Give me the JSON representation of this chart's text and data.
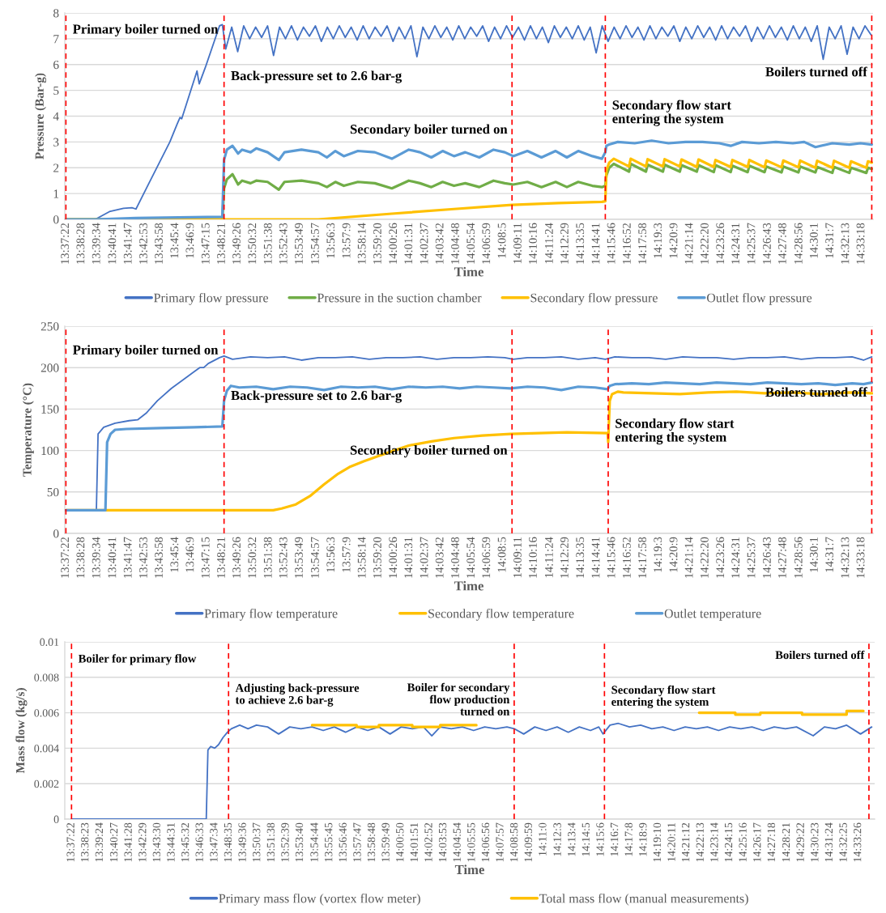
{
  "chart_data": [
    {
      "type": "line",
      "xlabel": "Time",
      "ylabel": "Pressure (Bar-g)",
      "xlim": [
        13.6215,
        14.5685
      ],
      "ylim": [
        0,
        8
      ],
      "grid": "y",
      "legend": "bottom",
      "xticks": [
        {
          "value": 13.6228,
          "label": "13:37:22"
        },
        {
          "value": 13.6411,
          "label": "13:38:28"
        },
        {
          "value": 13.6594,
          "label": "13:39:34"
        },
        {
          "value": 13.6781,
          "label": "13:40:41"
        },
        {
          "value": 13.6964,
          "label": "13:41:47"
        },
        {
          "value": 13.7147,
          "label": "13:42:53"
        },
        {
          "value": 13.7328,
          "label": "13:43:58"
        },
        {
          "value": 13.7511,
          "label": "13:45:4"
        },
        {
          "value": 13.7692,
          "label": "13:46:9"
        },
        {
          "value": 13.7875,
          "label": "13:47:15"
        },
        {
          "value": 13.8058,
          "label": "13:48:21"
        },
        {
          "value": 13.8239,
          "label": "13:49:26"
        },
        {
          "value": 13.8422,
          "label": "13:50:32"
        },
        {
          "value": 13.8606,
          "label": "13:51:38"
        },
        {
          "value": 13.8786,
          "label": "13:52:43"
        },
        {
          "value": 13.8969,
          "label": "13:53:49"
        },
        {
          "value": 13.9158,
          "label": "13:54:57"
        },
        {
          "value": 13.9342,
          "label": "13:56:3"
        },
        {
          "value": 13.9525,
          "label": "13:57:9"
        },
        {
          "value": 13.9706,
          "label": "13:58:14"
        },
        {
          "value": 13.9889,
          "label": "13:59:20"
        },
        {
          "value": 14.0072,
          "label": "14:00:26"
        },
        {
          "value": 14.0253,
          "label": "14:01:31"
        },
        {
          "value": 14.0436,
          "label": "14:02:37"
        },
        {
          "value": 14.0617,
          "label": "14:03:42"
        },
        {
          "value": 14.08,
          "label": "14:04:48"
        },
        {
          "value": 14.0983,
          "label": "14:05:54"
        },
        {
          "value": 14.1164,
          "label": "14:06:59"
        },
        {
          "value": 14.1347,
          "label": "14:08:5"
        },
        {
          "value": 14.1531,
          "label": "14:09:11"
        },
        {
          "value": 14.1711,
          "label": "14:10:16"
        },
        {
          "value": 14.19,
          "label": "14:11:24"
        },
        {
          "value": 14.2081,
          "label": "14:12:29"
        },
        {
          "value": 14.2264,
          "label": "14:13:35"
        },
        {
          "value": 14.2447,
          "label": "14:14:41"
        },
        {
          "value": 14.2628,
          "label": "14:15:46"
        },
        {
          "value": 14.2811,
          "label": "14:16:52"
        },
        {
          "value": 14.2994,
          "label": "14:17:58"
        },
        {
          "value": 14.3175,
          "label": "14:19:3"
        },
        {
          "value": 14.3358,
          "label": "14:20:9"
        },
        {
          "value": 14.3539,
          "label": "14:21:14"
        },
        {
          "value": 14.3722,
          "label": "14:22:20"
        },
        {
          "value": 14.3906,
          "label": "14:23:26"
        },
        {
          "value": 14.4086,
          "label": "14:24:31"
        },
        {
          "value": 14.4269,
          "label": "14:25:37"
        },
        {
          "value": 14.4453,
          "label": "14:26:43"
        },
        {
          "value": 14.4633,
          "label": "14:27:48"
        },
        {
          "value": 14.4822,
          "label": "14:28:56"
        },
        {
          "value": 14.5003,
          "label": "14:30:1"
        },
        {
          "value": 14.5186,
          "label": "14:31:7"
        },
        {
          "value": 14.5369,
          "label": "14:32:13"
        },
        {
          "value": 14.555,
          "label": "14:33:18"
        }
      ],
      "yticks": [
        0,
        1,
        2,
        3,
        4,
        5,
        6,
        7,
        8
      ],
      "ref_lines": [
        {
          "axis": "x",
          "value": 13.6228,
          "label": "Primary boiler turned on",
          "color": "#ff0000",
          "line_style": "dashed"
        },
        {
          "axis": "x",
          "value": 13.8081,
          "label": "Back-pressure set to 2.6 bar-g",
          "color": "#ff0000",
          "line_style": "dashed"
        },
        {
          "axis": "x",
          "value": 14.1455,
          "label": "Secondary boiler turned on",
          "color": "#ff0000",
          "line_style": "dashed"
        },
        {
          "axis": "x",
          "value": 14.2548,
          "label": "Secondary flow start\nentering the system",
          "color": "#ff0000",
          "line_style": "dashed"
        },
        {
          "axis": "x",
          "value": 14.567,
          "label": "Boilers turned off",
          "color": "#ff0000",
          "line_style": "dashed"
        }
      ],
      "series": [
        {
          "name": "Primary flow pressure",
          "color": "#4472c4",
          "x": [
            13.6228,
            13.6572,
            13.6738,
            13.6903,
            13.7002,
            13.7049,
            13.7201,
            13.7446,
            13.7532,
            13.7565,
            13.7585,
            13.7764,
            13.779,
            13.7863,
            13.8028,
            13.8061,
            13.8101,
            13.8171,
            13.8241,
            13.8311,
            13.8381,
            13.8451,
            13.8521,
            13.8591,
            13.8661,
            13.8731,
            13.8801,
            13.8871,
            13.8941,
            13.9011,
            13.9081,
            13.9151,
            13.9221,
            13.9291,
            13.9361,
            13.9431,
            13.9501,
            13.9571,
            13.9641,
            13.9711,
            13.9781,
            13.9851,
            13.9921,
            13.9991,
            14.0061,
            14.0131,
            14.0201,
            14.0271,
            14.0341,
            14.0411,
            14.0481,
            14.0551,
            14.0621,
            14.0691,
            14.0761,
            14.0831,
            14.0901,
            14.0971,
            14.1041,
            14.1111,
            14.1181,
            14.1251,
            14.1321,
            14.1391,
            14.1461,
            14.1531,
            14.1601,
            14.1671,
            14.1741,
            14.1811,
            14.1881,
            14.1951,
            14.2021,
            14.2091,
            14.2161,
            14.2231,
            14.2301,
            14.2371,
            14.2441,
            14.2511,
            14.2581,
            14.2651,
            14.2721,
            14.2791,
            14.2861,
            14.2931,
            14.3001,
            14.3071,
            14.3141,
            14.3211,
            14.3281,
            14.3351,
            14.3421,
            14.3491,
            14.3561,
            14.3631,
            14.3701,
            14.3771,
            14.3841,
            14.3911,
            14.3981,
            14.4051,
            14.4121,
            14.4191,
            14.4261,
            14.4331,
            14.4401,
            14.4471,
            14.4541,
            14.4611,
            14.4681,
            14.4751,
            14.4821,
            14.4891,
            14.4961,
            14.5031,
            14.5101,
            14.5171,
            14.5241,
            14.5311,
            14.5381,
            14.5451,
            14.5521,
            14.5591,
            14.5661
          ],
          "values": [
            0,
            0,
            0.3,
            0.43,
            0.45,
            0.4,
            1.4,
            3.0,
            3.7,
            3.95,
            3.9,
            5.75,
            5.25,
            5.9,
            7.5,
            7.55,
            6.6,
            7.45,
            6.5,
            7.5,
            7.0,
            7.45,
            7.05,
            7.5,
            6.35,
            7.45,
            7.0,
            7.5,
            6.95,
            7.45,
            7.1,
            7.5,
            6.9,
            7.45,
            7.0,
            7.5,
            7.05,
            7.45,
            6.95,
            7.5,
            7.0,
            7.45,
            7.1,
            7.5,
            6.9,
            7.45,
            7.0,
            7.5,
            6.3,
            7.45,
            7.0,
            7.5,
            7.05,
            7.45,
            6.95,
            7.5,
            7.0,
            7.45,
            7.1,
            7.5,
            6.9,
            7.45,
            7.0,
            7.5,
            7.05,
            7.45,
            6.95,
            7.5,
            7.0,
            7.45,
            6.85,
            7.5,
            7.05,
            7.45,
            7.0,
            7.5,
            6.95,
            7.45,
            6.45,
            7.5,
            6.9,
            7.45,
            7.0,
            7.5,
            7.05,
            7.45,
            6.95,
            7.5,
            7.0,
            7.45,
            7.1,
            7.5,
            6.9,
            7.45,
            7.0,
            7.5,
            7.05,
            7.45,
            6.95,
            7.5,
            7.0,
            7.45,
            7.1,
            7.5,
            6.9,
            7.45,
            7.0,
            7.5,
            7.05,
            7.45,
            6.95,
            7.5,
            7.0,
            7.45,
            6.9,
            7.5,
            6.2,
            7.45,
            7.0,
            7.5,
            6.4,
            7.45,
            7.0,
            7.5,
            7.15
          ]
        },
        {
          "name": "Pressure in the suction chamber",
          "color": "#70ad47",
          "x": [
            13.6228,
            13.8061,
            13.8081,
            13.8114,
            13.818,
            13.8246,
            13.8293,
            13.8392,
            13.8458,
            13.8591,
            13.8723,
            13.8789,
            13.8988,
            13.9186,
            13.9286,
            13.9385,
            13.9484,
            13.9649,
            13.9848,
            14.0047,
            14.0245,
            14.0377,
            14.051,
            14.0642,
            14.0775,
            14.0907,
            14.1072,
            14.1238,
            14.137,
            14.1469,
            14.1635,
            14.18,
            14.1966,
            14.2098,
            14.2231,
            14.2396,
            14.2509,
            14.2548,
            14.2561,
            14.2594,
            14.2647,
            14.2826,
            14.2846,
            14.3024,
            14.3044,
            14.3223,
            14.3243,
            14.3421,
            14.3441,
            14.362,
            14.364,
            14.3819,
            14.3839,
            14.4017,
            14.4037,
            14.4216,
            14.4236,
            14.4414,
            14.4434,
            14.4613,
            14.4633,
            14.4811,
            14.4831,
            14.501,
            14.503,
            14.5208,
            14.5228,
            14.5407,
            14.5427,
            14.5606,
            14.5626,
            14.567
          ],
          "values": [
            0,
            0,
            1.2,
            1.55,
            1.75,
            1.35,
            1.5,
            1.4,
            1.5,
            1.45,
            1.15,
            1.45,
            1.5,
            1.4,
            1.25,
            1.45,
            1.3,
            1.45,
            1.4,
            1.2,
            1.5,
            1.4,
            1.25,
            1.45,
            1.3,
            1.4,
            1.25,
            1.5,
            1.4,
            1.35,
            1.45,
            1.25,
            1.45,
            1.25,
            1.45,
            1.3,
            1.25,
            1.3,
            1.7,
            2.0,
            2.15,
            1.85,
            2.15,
            1.85,
            2.12,
            1.85,
            2.12,
            1.85,
            2.1,
            1.85,
            2.1,
            1.83,
            2.1,
            1.83,
            2.08,
            1.83,
            2.08,
            1.83,
            2.05,
            1.82,
            2.05,
            1.82,
            2.05,
            1.82,
            2.03,
            1.8,
            2.03,
            1.8,
            2.0,
            1.8,
            2.0,
            1.95
          ]
        },
        {
          "name": "Secondary flow pressure",
          "color": "#ffc000",
          "x": [
            13.6228,
            13.9186,
            14.0047,
            14.0775,
            14.1455,
            14.2,
            14.2509,
            14.2548,
            14.2561,
            14.2594,
            14.2647,
            14.2826,
            14.2846,
            14.3024,
            14.3044,
            14.3223,
            14.3243,
            14.3421,
            14.3441,
            14.362,
            14.364,
            14.3819,
            14.3839,
            14.4017,
            14.4037,
            14.4216,
            14.4236,
            14.4414,
            14.4434,
            14.4613,
            14.4633,
            14.4811,
            14.4831,
            14.501,
            14.503,
            14.5208,
            14.5228,
            14.5407,
            14.5427,
            14.5606,
            14.5626,
            14.567
          ],
          "values": [
            0,
            0,
            0.22,
            0.4,
            0.56,
            0.63,
            0.68,
            0.7,
            1.9,
            2.2,
            2.35,
            2.05,
            2.35,
            2.05,
            2.33,
            2.05,
            2.33,
            2.05,
            2.32,
            2.03,
            2.32,
            2.03,
            2.3,
            2.03,
            2.3,
            2.03,
            2.3,
            2.02,
            2.28,
            2.02,
            2.28,
            2.02,
            2.28,
            2.0,
            2.27,
            2.0,
            2.27,
            2.0,
            2.25,
            2.0,
            2.25,
            2.2
          ]
        },
        {
          "name": "Outlet flow pressure",
          "color": "#5b9bd5",
          "x": [
            13.6228,
            13.6572,
            13.7049,
            13.8061,
            13.8081,
            13.8114,
            13.818,
            13.8246,
            13.8293,
            13.8392,
            13.8458,
            13.8591,
            13.8723,
            13.8789,
            13.8988,
            13.9186,
            13.9286,
            13.9385,
            13.9484,
            13.9649,
            13.9848,
            14.0047,
            14.0245,
            14.0377,
            14.051,
            14.0642,
            14.0775,
            14.0907,
            14.1072,
            14.1238,
            14.137,
            14.1469,
            14.1635,
            14.18,
            14.1966,
            14.2098,
            14.2231,
            14.2396,
            14.2509,
            14.2548,
            14.2561,
            14.2594,
            14.2694,
            14.2892,
            14.3091,
            14.3289,
            14.3488,
            14.3687,
            14.3885,
            14.4017,
            14.415,
            14.4348,
            14.4547,
            14.4745,
            14.4878,
            14.501,
            14.5208,
            14.5407,
            14.5539,
            14.567
          ],
          "values": [
            0,
            0,
            0.05,
            0.1,
            2.3,
            2.7,
            2.85,
            2.55,
            2.7,
            2.6,
            2.75,
            2.6,
            2.3,
            2.6,
            2.7,
            2.6,
            2.4,
            2.65,
            2.45,
            2.65,
            2.6,
            2.35,
            2.7,
            2.6,
            2.4,
            2.65,
            2.45,
            2.6,
            2.4,
            2.7,
            2.6,
            2.45,
            2.65,
            2.4,
            2.65,
            2.4,
            2.65,
            2.45,
            2.35,
            2.6,
            2.85,
            2.9,
            3.0,
            2.95,
            3.05,
            2.95,
            3.0,
            3.0,
            2.95,
            2.85,
            3.0,
            2.95,
            3.0,
            2.95,
            3.0,
            2.8,
            2.95,
            2.9,
            2.95,
            2.9
          ]
        }
      ]
    },
    {
      "type": "line",
      "xlabel": "Time",
      "ylabel": "Temperature (°C)",
      "xlim": [
        13.6215,
        14.5685
      ],
      "ylim": [
        0,
        250
      ],
      "grid": "y",
      "legend": "bottom",
      "xticks": [
        {
          "value": 13.6228,
          "label": "13:37:22"
        },
        {
          "value": 13.6411,
          "label": "13:38:28"
        },
        {
          "value": 13.6594,
          "label": "13:39:34"
        },
        {
          "value": 13.6781,
          "label": "13:40:41"
        },
        {
          "value": 13.6964,
          "label": "13:41:47"
        },
        {
          "value": 13.7147,
          "label": "13:42:53"
        },
        {
          "value": 13.7328,
          "label": "13:43:58"
        },
        {
          "value": 13.7511,
          "label": "13:45:4"
        },
        {
          "value": 13.7692,
          "label": "13:46:9"
        },
        {
          "value": 13.7875,
          "label": "13:47:15"
        },
        {
          "value": 13.8058,
          "label": "13:48:21"
        },
        {
          "value": 13.8239,
          "label": "13:49:26"
        },
        {
          "value": 13.8422,
          "label": "13:50:32"
        },
        {
          "value": 13.8606,
          "label": "13:51:38"
        },
        {
          "value": 13.8786,
          "label": "13:52:43"
        },
        {
          "value": 13.8969,
          "label": "13:53:49"
        },
        {
          "value": 13.9158,
          "label": "13:54:57"
        },
        {
          "value": 13.9342,
          "label": "13:56:3"
        },
        {
          "value": 13.9525,
          "label": "13:57:9"
        },
        {
          "value": 13.9706,
          "label": "13:58:14"
        },
        {
          "value": 13.9889,
          "label": "13:59:20"
        },
        {
          "value": 14.0072,
          "label": "14:00:26"
        },
        {
          "value": 14.0253,
          "label": "14:01:31"
        },
        {
          "value": 14.0436,
          "label": "14:02:37"
        },
        {
          "value": 14.0617,
          "label": "14:03:42"
        },
        {
          "value": 14.08,
          "label": "14:04:48"
        },
        {
          "value": 14.0983,
          "label": "14:05:54"
        },
        {
          "value": 14.1164,
          "label": "14:06:59"
        },
        {
          "value": 14.1347,
          "label": "14:08:5"
        },
        {
          "value": 14.1531,
          "label": "14:09:11"
        },
        {
          "value": 14.1711,
          "label": "14:10:16"
        },
        {
          "value": 14.19,
          "label": "14:11:24"
        },
        {
          "value": 14.2081,
          "label": "14:12:29"
        },
        {
          "value": 14.2264,
          "label": "14:13:35"
        },
        {
          "value": 14.2447,
          "label": "14:14:41"
        },
        {
          "value": 14.2628,
          "label": "14:15:46"
        },
        {
          "value": 14.2811,
          "label": "14:16:52"
        },
        {
          "value": 14.2994,
          "label": "14:17:58"
        },
        {
          "value": 14.3175,
          "label": "14:19:3"
        },
        {
          "value": 14.3358,
          "label": "14:20:9"
        },
        {
          "value": 14.3539,
          "label": "14:21:14"
        },
        {
          "value": 14.3722,
          "label": "14:22:20"
        },
        {
          "value": 14.3906,
          "label": "14:23:26"
        },
        {
          "value": 14.4086,
          "label": "14:24:31"
        },
        {
          "value": 14.4269,
          "label": "14:25:37"
        },
        {
          "value": 14.4453,
          "label": "14:26:43"
        },
        {
          "value": 14.4633,
          "label": "14:27:48"
        },
        {
          "value": 14.4822,
          "label": "14:28:56"
        },
        {
          "value": 14.5003,
          "label": "14:30:1"
        },
        {
          "value": 14.5186,
          "label": "14:31:7"
        },
        {
          "value": 14.5369,
          "label": "14:32:13"
        },
        {
          "value": 14.555,
          "label": "14:33:18"
        }
      ],
      "yticks": [
        0,
        50,
        100,
        150,
        200,
        250
      ],
      "ref_lines": [
        {
          "axis": "x",
          "value": 13.6228,
          "label": "Primary boiler turned on",
          "color": "#ff0000",
          "line_style": "dashed"
        },
        {
          "axis": "x",
          "value": 13.8081,
          "label": "Back-pressure set to 2.6 bar-g",
          "color": "#ff0000",
          "line_style": "dashed"
        },
        {
          "axis": "x",
          "value": 14.1455,
          "label": "Secondary boiler turned on",
          "color": "#ff0000",
          "line_style": "dashed"
        },
        {
          "axis": "x",
          "value": 14.2582,
          "label": "Secondary flow start\nentering the system",
          "color": "#ff0000",
          "line_style": "dashed"
        },
        {
          "axis": "x",
          "value": 14.567,
          "label": "Boilers turned off",
          "color": "#ff0000",
          "line_style": "dashed"
        }
      ],
      "series": [
        {
          "name": "Primary flow temperature",
          "color": "#4472c4",
          "x": [
            13.6228,
            13.6585,
            13.6605,
            13.6671,
            13.6804,
            13.6969,
            13.7068,
            13.7168,
            13.73,
            13.7465,
            13.7598,
            13.773,
            13.7796,
            13.7843,
            13.7896,
            13.8028,
            13.8081,
            13.818,
            13.8392,
            13.8591,
            13.8789,
            13.8988,
            13.9186,
            13.9385,
            13.9584,
            13.9782,
            13.9981,
            14.0179,
            14.0378,
            14.0576,
            14.0775,
            14.0973,
            14.1172,
            14.137,
            14.1469,
            14.1635,
            14.1833,
            14.2032,
            14.2231,
            14.2429,
            14.2548,
            14.266,
            14.2859,
            14.3058,
            14.3256,
            14.3455,
            14.3654,
            14.3852,
            14.4051,
            14.4249,
            14.4448,
            14.4646,
            14.4845,
            14.5043,
            14.5242,
            14.544,
            14.5573,
            14.567
          ],
          "values": [
            28,
            28,
            120,
            128,
            133,
            136,
            137,
            145,
            160,
            175,
            185,
            195,
            200,
            200,
            205,
            212,
            214,
            210,
            213,
            212,
            213,
            209,
            212,
            212,
            213,
            210,
            212,
            212,
            213,
            210,
            212,
            212,
            213,
            212,
            210,
            212,
            212,
            213,
            210,
            212,
            210,
            213,
            212,
            212,
            210,
            213,
            212,
            212,
            210,
            212,
            212,
            213,
            210,
            212,
            212,
            213,
            209,
            213
          ]
        },
        {
          "name": "Secondary flow temperature",
          "color": "#ffc000",
          "x": [
            13.6228,
            13.8657,
            13.8756,
            13.8922,
            13.9087,
            13.9252,
            13.9418,
            13.955,
            13.9716,
            13.9881,
            14.0047,
            14.0245,
            14.051,
            14.0775,
            14.1106,
            14.1437,
            14.1767,
            14.2098,
            14.2575,
            14.2582,
            14.26,
            14.2627,
            14.2694,
            14.276,
            14.3091,
            14.3422,
            14.3753,
            14.4084,
            14.4415,
            14.4745,
            14.5076,
            14.5407,
            14.5672
          ],
          "values": [
            28,
            28,
            30,
            35,
            45,
            59,
            72,
            80,
            87,
            93,
            99,
            106,
            111,
            115,
            118,
            120,
            121,
            122,
            121,
            110,
            160,
            168,
            171,
            170,
            169,
            168,
            170,
            171,
            169,
            170,
            168,
            170,
            169
          ]
        },
        {
          "name": "Outlet temperature",
          "color": "#5b9bd5",
          "x": [
            13.6228,
            13.6691,
            13.6711,
            13.6751,
            13.6804,
            13.6936,
            13.7333,
            13.773,
            13.8061,
            13.8081,
            13.8114,
            13.8161,
            13.826,
            13.8458,
            13.8657,
            13.8856,
            13.9054,
            13.9253,
            13.9451,
            13.965,
            13.9849,
            14.0047,
            14.0246,
            14.0444,
            14.0643,
            14.0841,
            14.104,
            14.1239,
            14.1437,
            14.1636,
            14.1834,
            14.2033,
            14.2231,
            14.243,
            14.2575,
            14.26,
            14.266,
            14.2859,
            14.3058,
            14.3256,
            14.3455,
            14.3654,
            14.3852,
            14.4051,
            14.4249,
            14.4448,
            14.4646,
            14.4845,
            14.5043,
            14.5242,
            14.544,
            14.5573,
            14.567
          ],
          "values": [
            28,
            28,
            110,
            120,
            125,
            126,
            127,
            128,
            129,
            160,
            172,
            178,
            176,
            177,
            174,
            177,
            176,
            173,
            177,
            176,
            177,
            174,
            177,
            176,
            177,
            175,
            177,
            176,
            175,
            177,
            176,
            173,
            177,
            176,
            174,
            178,
            180,
            181,
            180,
            182,
            181,
            180,
            182,
            181,
            180,
            182,
            181,
            180,
            181,
            179,
            181,
            180,
            182
          ]
        }
      ]
    },
    {
      "type": "line",
      "xlabel": "Time",
      "ylabel": "Mass flow (kg/s)",
      "xlim": [
        13.6148,
        14.5766
      ],
      "ylim": [
        0,
        0.01
      ],
      "grid": "y",
      "legend": "bottom",
      "xticks": [
        {
          "value": 13.6228,
          "label": "13:37:22"
        },
        {
          "value": 13.6397,
          "label": "13:38:23"
        },
        {
          "value": 13.6567,
          "label": "13:39:24"
        },
        {
          "value": 13.6742,
          "label": "13:40:27"
        },
        {
          "value": 13.6911,
          "label": "13:41:28"
        },
        {
          "value": 13.7081,
          "label": "13:42:29"
        },
        {
          "value": 13.725,
          "label": "13:43:30"
        },
        {
          "value": 13.7419,
          "label": "13:44:31"
        },
        {
          "value": 13.7589,
          "label": "13:45:32"
        },
        {
          "value": 13.7758,
          "label": "13:46:33"
        },
        {
          "value": 13.7928,
          "label": "13:47:34"
        },
        {
          "value": 13.8097,
          "label": "13:48:35"
        },
        {
          "value": 13.8267,
          "label": "13:49:36"
        },
        {
          "value": 13.8436,
          "label": "13:50:37"
        },
        {
          "value": 13.8606,
          "label": "13:51:38"
        },
        {
          "value": 13.8775,
          "label": "13:52:39"
        },
        {
          "value": 13.8944,
          "label": "13:53:40"
        },
        {
          "value": 13.9122,
          "label": "13:54:44"
        },
        {
          "value": 13.9292,
          "label": "13:55:45"
        },
        {
          "value": 13.9461,
          "label": "13:56:46"
        },
        {
          "value": 13.9631,
          "label": "13:57:47"
        },
        {
          "value": 13.98,
          "label": "13:58:48"
        },
        {
          "value": 13.9969,
          "label": "13:59:49"
        },
        {
          "value": 14.0139,
          "label": "14:00:50"
        },
        {
          "value": 14.0308,
          "label": "14:01:51"
        },
        {
          "value": 14.0478,
          "label": "14:02:52"
        },
        {
          "value": 14.0647,
          "label": "14:03:53"
        },
        {
          "value": 14.0817,
          "label": "14:04:54"
        },
        {
          "value": 14.0986,
          "label": "14:05:55"
        },
        {
          "value": 14.1156,
          "label": "14:06:56"
        },
        {
          "value": 14.1325,
          "label": "14:07:57"
        },
        {
          "value": 14.1494,
          "label": "14:08:58"
        },
        {
          "value": 14.1664,
          "label": "14:09:59"
        },
        {
          "value": 14.1833,
          "label": "14:11:0"
        },
        {
          "value": 14.2008,
          "label": "14:12:3"
        },
        {
          "value": 14.2178,
          "label": "14:13:4"
        },
        {
          "value": 14.2347,
          "label": "14:14:5"
        },
        {
          "value": 14.2517,
          "label": "14:15:6"
        },
        {
          "value": 14.2686,
          "label": "14:16:7"
        },
        {
          "value": 14.2856,
          "label": "14:17:8"
        },
        {
          "value": 14.3025,
          "label": "14:18:9"
        },
        {
          "value": 14.3194,
          "label": "14:19:10"
        },
        {
          "value": 14.3364,
          "label": "14:20:11"
        },
        {
          "value": 14.3533,
          "label": "14:21:12"
        },
        {
          "value": 14.3703,
          "label": "14:22:13"
        },
        {
          "value": 14.3872,
          "label": "14:23:14"
        },
        {
          "value": 14.4042,
          "label": "14:24:15"
        },
        {
          "value": 14.4211,
          "label": "14:25:16"
        },
        {
          "value": 14.4381,
          "label": "14:26:17"
        },
        {
          "value": 14.455,
          "label": "14:27:18"
        },
        {
          "value": 14.4725,
          "label": "14:28:21"
        },
        {
          "value": 14.4894,
          "label": "14:29:22"
        },
        {
          "value": 14.5064,
          "label": "14:30:23"
        },
        {
          "value": 14.5233,
          "label": "14:31:24"
        },
        {
          "value": 14.5403,
          "label": "14:32:25"
        },
        {
          "value": 14.5572,
          "label": "14:33:26"
        }
      ],
      "yticks": [
        0,
        0.002,
        0.004,
        0.006,
        0.008,
        0.01
      ],
      "ref_lines": [
        {
          "axis": "x",
          "value": 13.6228,
          "label": "Boiler for primary flow",
          "color": "#ff0000",
          "line_style": "dashed"
        },
        {
          "axis": "x",
          "value": 13.8093,
          "label": "Adjusting back-pressure\nto achieve 2.6 bar-g",
          "color": "#ff0000",
          "line_style": "dashed"
        },
        {
          "axis": "x",
          "value": 14.1485,
          "label": "Boiler for secondary\nflow production\nturned on",
          "color": "#ff0000",
          "line_style": "dashed"
        },
        {
          "axis": "x",
          "value": 14.2557,
          "label": "Secondary flow start\nentering the system",
          "color": "#ff0000",
          "line_style": "dashed"
        },
        {
          "axis": "x",
          "value": 14.5698,
          "label": "Boilers turned off",
          "color": "#ff0000",
          "line_style": "dashed"
        }
      ],
      "series": [
        {
          "name": "Primary mass flow (vortex flow meter)",
          "color": "#4472c4",
          "x": [
            13.6228,
            13.7828,
            13.7848,
            13.7881,
            13.7928,
            13.7974,
            13.8027,
            13.808,
            13.8126,
            13.8225,
            13.8324,
            13.8424,
            13.8556,
            13.8688,
            13.882,
            13.8952,
            13.9085,
            13.9217,
            13.9349,
            13.9482,
            13.9614,
            13.9746,
            13.9878,
            14.0011,
            14.0143,
            14.0275,
            14.0407,
            14.0507,
            14.0606,
            14.0738,
            14.087,
            14.1003,
            14.1135,
            14.1267,
            14.1399,
            14.1485,
            14.1598,
            14.173,
            14.1862,
            14.1995,
            14.2127,
            14.2259,
            14.2391,
            14.249,
            14.254,
            14.2623,
            14.2722,
            14.2854,
            14.2987,
            14.3119,
            14.3251,
            14.3383,
            14.3516,
            14.3648,
            14.378,
            14.3912,
            14.4045,
            14.4177,
            14.4309,
            14.4441,
            14.4573,
            14.4706,
            14.4838,
            14.5036,
            14.5169,
            14.5301,
            14.5433,
            14.5598,
            14.5731
          ],
          "values": [
            0,
            0,
            0.0039,
            0.0041,
            0.004,
            0.0042,
            0.0046,
            0.0049,
            0.0051,
            0.0053,
            0.0051,
            0.0053,
            0.0052,
            0.0048,
            0.0052,
            0.0051,
            0.0052,
            0.005,
            0.0052,
            0.0049,
            0.0052,
            0.005,
            0.0052,
            0.0048,
            0.0052,
            0.0051,
            0.0052,
            0.0047,
            0.0052,
            0.0051,
            0.0052,
            0.005,
            0.0052,
            0.0051,
            0.0052,
            0.0051,
            0.0048,
            0.0052,
            0.005,
            0.0052,
            0.0049,
            0.0052,
            0.005,
            0.0052,
            0.0048,
            0.0053,
            0.0054,
            0.0052,
            0.0053,
            0.0051,
            0.0052,
            0.005,
            0.0052,
            0.0051,
            0.0052,
            0.005,
            0.0052,
            0.0051,
            0.0052,
            0.005,
            0.0052,
            0.0051,
            0.0052,
            0.0047,
            0.0052,
            0.0051,
            0.0053,
            0.0048,
            0.0052
          ]
        },
        {
          "name": "Total mass flow (manual measurements)",
          "color": "#ffc000",
          "x": [
            13.9085,
            13.9614,
            13.9614,
            13.9878,
            13.9878,
            14.0275,
            14.0275,
            14.0606,
            14.0606,
            14.1036,
            14.2,
            14.3681,
            14.4111,
            14.4111,
            14.4408,
            14.4408,
            14.4904,
            14.4904,
            14.5433,
            14.5433,
            14.5632
          ],
          "values": [
            0.0053,
            0.0053,
            0.0052,
            0.0052,
            0.0053,
            0.0053,
            0.0052,
            0.0052,
            0.0053,
            0.0053,
            null,
            0.006,
            0.006,
            0.0059,
            0.0059,
            0.006,
            0.006,
            0.0059,
            0.0059,
            0.0061,
            0.0061
          ]
        }
      ]
    }
  ]
}
